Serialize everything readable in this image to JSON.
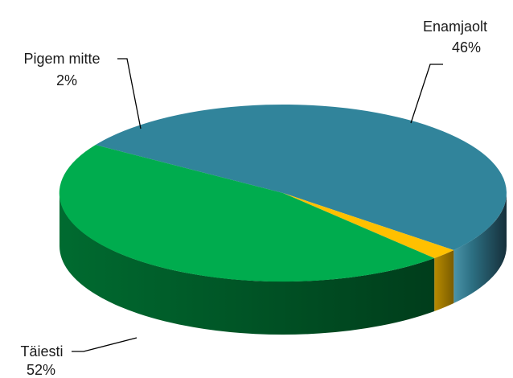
{
  "chart_data": {
    "type": "pie",
    "title": "",
    "style": "3d",
    "legend": "none",
    "slices": [
      {
        "label": "Täiesti",
        "value": 52,
        "value_label": "52%",
        "color": "#31849b"
      },
      {
        "label": "Pigem mitte",
        "value": 2,
        "value_label": "2%",
        "color": "#ffc000"
      },
      {
        "label": "Enamjaolt",
        "value": 46,
        "value_label": "46%",
        "color": "#00ac4e"
      }
    ]
  }
}
